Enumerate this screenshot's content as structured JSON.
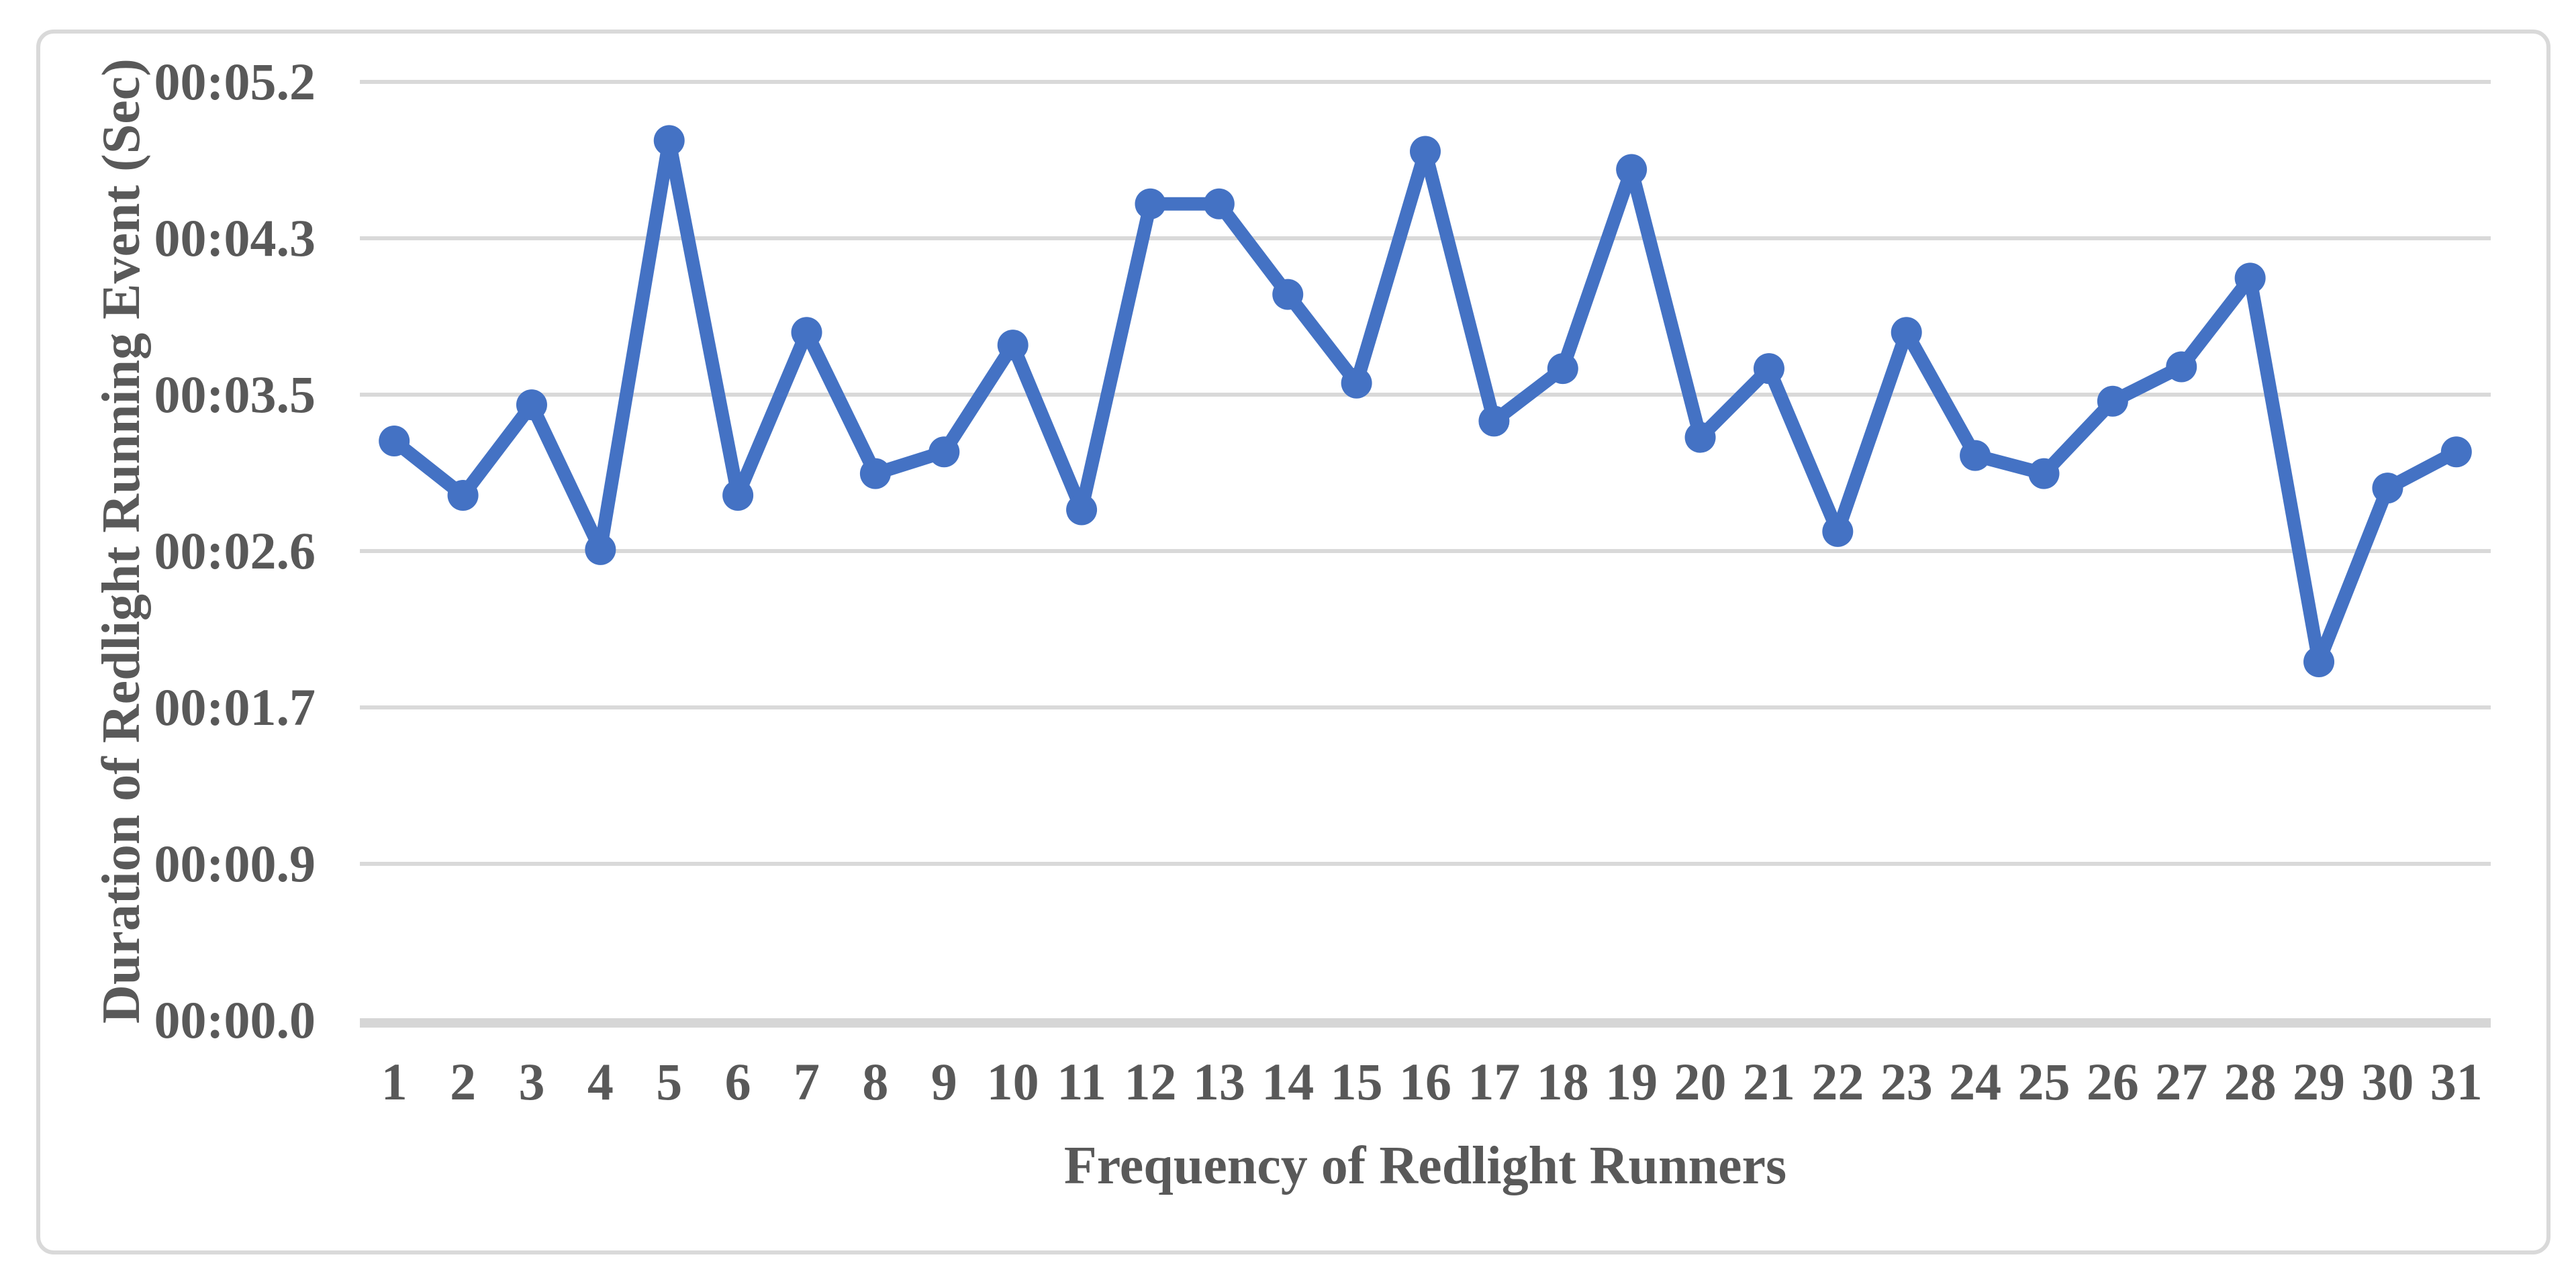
{
  "chart": {
    "background_color": "#FFFFFF",
    "frame_border_color": "#D9D9D9",
    "text_color": "#595959",
    "series_color": "#4472C4",
    "gridline_color": "#D9D9D9",
    "axis_line_color": "#D6D6D6"
  },
  "chart_data": {
    "type": "line",
    "xlabel": "Frequency of Redlight Runners",
    "ylabel": "Duration of Redlight Running Event (Sec)",
    "categories": [
      1,
      2,
      3,
      4,
      5,
      6,
      7,
      8,
      9,
      10,
      11,
      12,
      13,
      14,
      15,
      16,
      17,
      18,
      19,
      20,
      21,
      22,
      23,
      24,
      25,
      26,
      27,
      28,
      29,
      30,
      31
    ],
    "values_seconds": [
      3.2,
      2.9,
      3.4,
      2.6,
      4.86,
      2.9,
      3.8,
      3.02,
      3.14,
      3.73,
      2.82,
      4.51,
      4.51,
      4.01,
      3.52,
      4.8,
      3.31,
      3.6,
      4.7,
      3.22,
      3.6,
      2.7,
      3.8,
      3.12,
      3.02,
      3.42,
      3.61,
      4.1,
      1.98,
      2.94,
      3.14
    ],
    "y_ticks": [
      {
        "label": "00:05.2",
        "seconds": 5.184
      },
      {
        "label": "00:04.3",
        "seconds": 4.32
      },
      {
        "label": "00:03.5",
        "seconds": 3.456
      },
      {
        "label": "00:02.6",
        "seconds": 2.592
      },
      {
        "label": "00:01.7",
        "seconds": 1.728
      },
      {
        "label": "00:00.9",
        "seconds": 0.864
      },
      {
        "label": "00:00.0",
        "seconds": 0
      }
    ],
    "ylim": [
      0,
      5.184
    ],
    "grid": "horizontal",
    "legend": "none",
    "marker": "circle"
  }
}
